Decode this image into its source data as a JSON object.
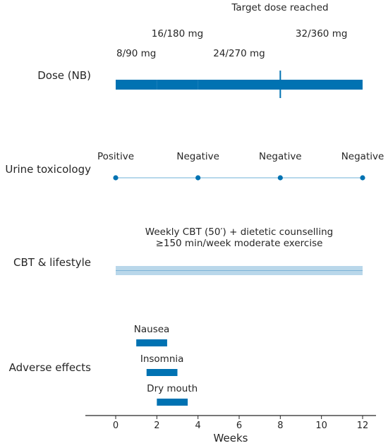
{
  "chart_data": {
    "type": "timeline",
    "xlabel": "Weeks",
    "xlim": [
      -1.4,
      12.6
    ],
    "xticks": [
      0,
      2,
      4,
      6,
      8,
      10,
      12
    ],
    "colors": {
      "primary": "#0072b2",
      "band_fill": "#b9d7ea",
      "band_line": "#7fb4d8",
      "axis": "#262626"
    },
    "rows": {
      "dose": {
        "label": "Dose (NB)",
        "segments": [
          {
            "start": 0,
            "end": 2,
            "label": "8/90 mg"
          },
          {
            "start": 2,
            "end": 4,
            "label": "16/180 mg"
          },
          {
            "start": 4,
            "end": 8,
            "label": "24/270 mg"
          },
          {
            "start": 8,
            "end": 12,
            "label": "32/360 mg"
          }
        ],
        "marker": {
          "x": 8,
          "label": "Target dose reached"
        }
      },
      "urine": {
        "label": "Urine toxicology",
        "points": [
          {
            "x": 0,
            "label": "Positive"
          },
          {
            "x": 4,
            "label": "Negative"
          },
          {
            "x": 8,
            "label": "Negative"
          },
          {
            "x": 12,
            "label": "Negative"
          }
        ]
      },
      "cbt": {
        "label": "CBT & lifestyle",
        "start": 0,
        "end": 12,
        "text_line1": "Weekly CBT (50′) + dietetic counselling",
        "text_line2": "≥150 min/week moderate exercise"
      },
      "adverse": {
        "label": "Adverse effects",
        "items": [
          {
            "name": "Nausea",
            "start": 1,
            "end": 2.5
          },
          {
            "name": "Insomnia",
            "start": 1.5,
            "end": 3
          },
          {
            "name": "Dry mouth",
            "start": 2,
            "end": 3.5
          }
        ]
      }
    }
  }
}
